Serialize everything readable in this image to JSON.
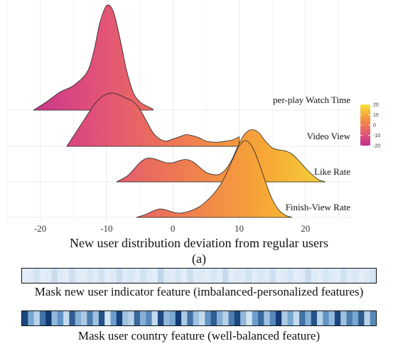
{
  "chart_data": {
    "type": "ridgeline",
    "xlabel": "New user distribution deviation from regular users",
    "panel_label": "(a)",
    "x_ticks": [
      -20,
      -10,
      0,
      10,
      20
    ],
    "xlim": [
      -25,
      27
    ],
    "grid": true,
    "color_scale": {
      "ticks": [
        20,
        10,
        0,
        -10,
        -20
      ],
      "range": [
        -20,
        20
      ],
      "stops": [
        "#c02d91",
        "#e0507a",
        "#ee7a52",
        "#f7a836",
        "#f2e33a"
      ]
    },
    "series": [
      {
        "name": "per-play Watch Time",
        "x": [
          -21,
          -19,
          -17,
          -15,
          -13,
          -12,
          -11,
          -10,
          -9,
          -8,
          -7,
          -6,
          -5,
          -4,
          -3
        ],
        "density": [
          0.0,
          0.08,
          0.17,
          0.23,
          0.35,
          0.53,
          0.82,
          0.98,
          0.93,
          0.68,
          0.38,
          0.17,
          0.08,
          0.04,
          0.01
        ]
      },
      {
        "name": "Video View",
        "x": [
          -16,
          -14,
          -12,
          -11,
          -10,
          -9,
          -8,
          -7,
          -6,
          -5,
          -4,
          -3,
          -2,
          -1,
          0,
          1,
          2,
          3,
          4,
          5,
          6,
          7,
          8,
          9,
          10
        ],
        "density": [
          0.0,
          0.19,
          0.38,
          0.45,
          0.49,
          0.5,
          0.48,
          0.45,
          0.42,
          0.35,
          0.24,
          0.13,
          0.07,
          0.05,
          0.07,
          0.09,
          0.11,
          0.1,
          0.08,
          0.05,
          0.04,
          0.04,
          0.05,
          0.06,
          0.09
        ]
      },
      {
        "name": "Like Rate",
        "x": [
          -8.5,
          -7,
          -6,
          -5,
          -4,
          -3,
          -2,
          -1,
          0,
          1,
          2,
          3,
          4,
          5,
          6,
          7,
          8,
          9,
          10,
          11,
          12,
          13,
          14,
          15,
          16,
          17,
          18,
          19,
          20,
          21,
          22,
          23
        ],
        "density": [
          0.0,
          0.05,
          0.11,
          0.18,
          0.22,
          0.22,
          0.2,
          0.18,
          0.18,
          0.2,
          0.21,
          0.19,
          0.14,
          0.09,
          0.07,
          0.07,
          0.12,
          0.22,
          0.36,
          0.46,
          0.49,
          0.46,
          0.38,
          0.32,
          0.3,
          0.29,
          0.26,
          0.2,
          0.13,
          0.07,
          0.02,
          0.0
        ]
      },
      {
        "name": "Finish-View Rate",
        "x": [
          -5.5,
          -4,
          -3,
          -2,
          -1,
          0,
          1,
          2,
          3,
          4,
          5,
          6,
          7,
          8,
          9,
          10,
          11,
          12,
          13,
          14,
          15,
          16,
          17,
          18
        ],
        "density": [
          0.0,
          0.03,
          0.06,
          0.08,
          0.07,
          0.05,
          0.04,
          0.05,
          0.07,
          0.1,
          0.15,
          0.21,
          0.29,
          0.4,
          0.54,
          0.67,
          0.72,
          0.66,
          0.51,
          0.33,
          0.17,
          0.07,
          0.02,
          0.0
        ]
      }
    ]
  },
  "masks": [
    {
      "caption": "Mask new user indicator feature (imbalanced-personalized features)",
      "values": [
        0.04,
        0.05,
        0.1,
        0.04,
        0.05,
        0.14,
        0.06,
        0.04,
        0.12,
        0.05,
        0.04,
        0.08,
        0.05,
        0.11,
        0.04,
        0.06,
        0.13,
        0.05,
        0.07,
        0.04,
        0.1,
        0.05,
        0.04,
        0.18,
        0.06,
        0.05,
        0.09,
        0.04,
        0.12,
        0.05,
        0.06,
        0.04,
        0.08,
        0.05,
        0.15,
        0.04,
        0.06,
        0.05,
        0.1,
        0.04,
        0.07,
        0.05,
        0.12,
        0.04,
        0.06,
        0.09,
        0.04,
        0.05,
        0.14,
        0.06,
        0.04,
        0.08,
        0.05,
        0.04,
        0.11,
        0.05,
        0.07,
        0.04,
        0.06,
        0.1
      ]
    },
    {
      "caption": "Mask user country feature (well-balanced feature)",
      "values": [
        0.9,
        0.45,
        0.2,
        0.7,
        0.95,
        0.35,
        0.55,
        0.15,
        0.8,
        0.4,
        0.25,
        0.65,
        0.3,
        0.85,
        0.1,
        0.5,
        0.92,
        0.3,
        0.2,
        0.75,
        0.4,
        0.6,
        0.15,
        0.88,
        0.35,
        0.45,
        0.95,
        0.25,
        0.7,
        0.3,
        0.15,
        0.55,
        0.8,
        0.4,
        0.2,
        0.65,
        0.9,
        0.35,
        0.1,
        0.5,
        0.75,
        0.3,
        0.6,
        0.95,
        0.25,
        0.45,
        0.15,
        0.7,
        0.4,
        0.85,
        0.2,
        0.55,
        0.35,
        0.9,
        0.3,
        0.65,
        0.45,
        0.8,
        0.2,
        0.6
      ]
    }
  ]
}
